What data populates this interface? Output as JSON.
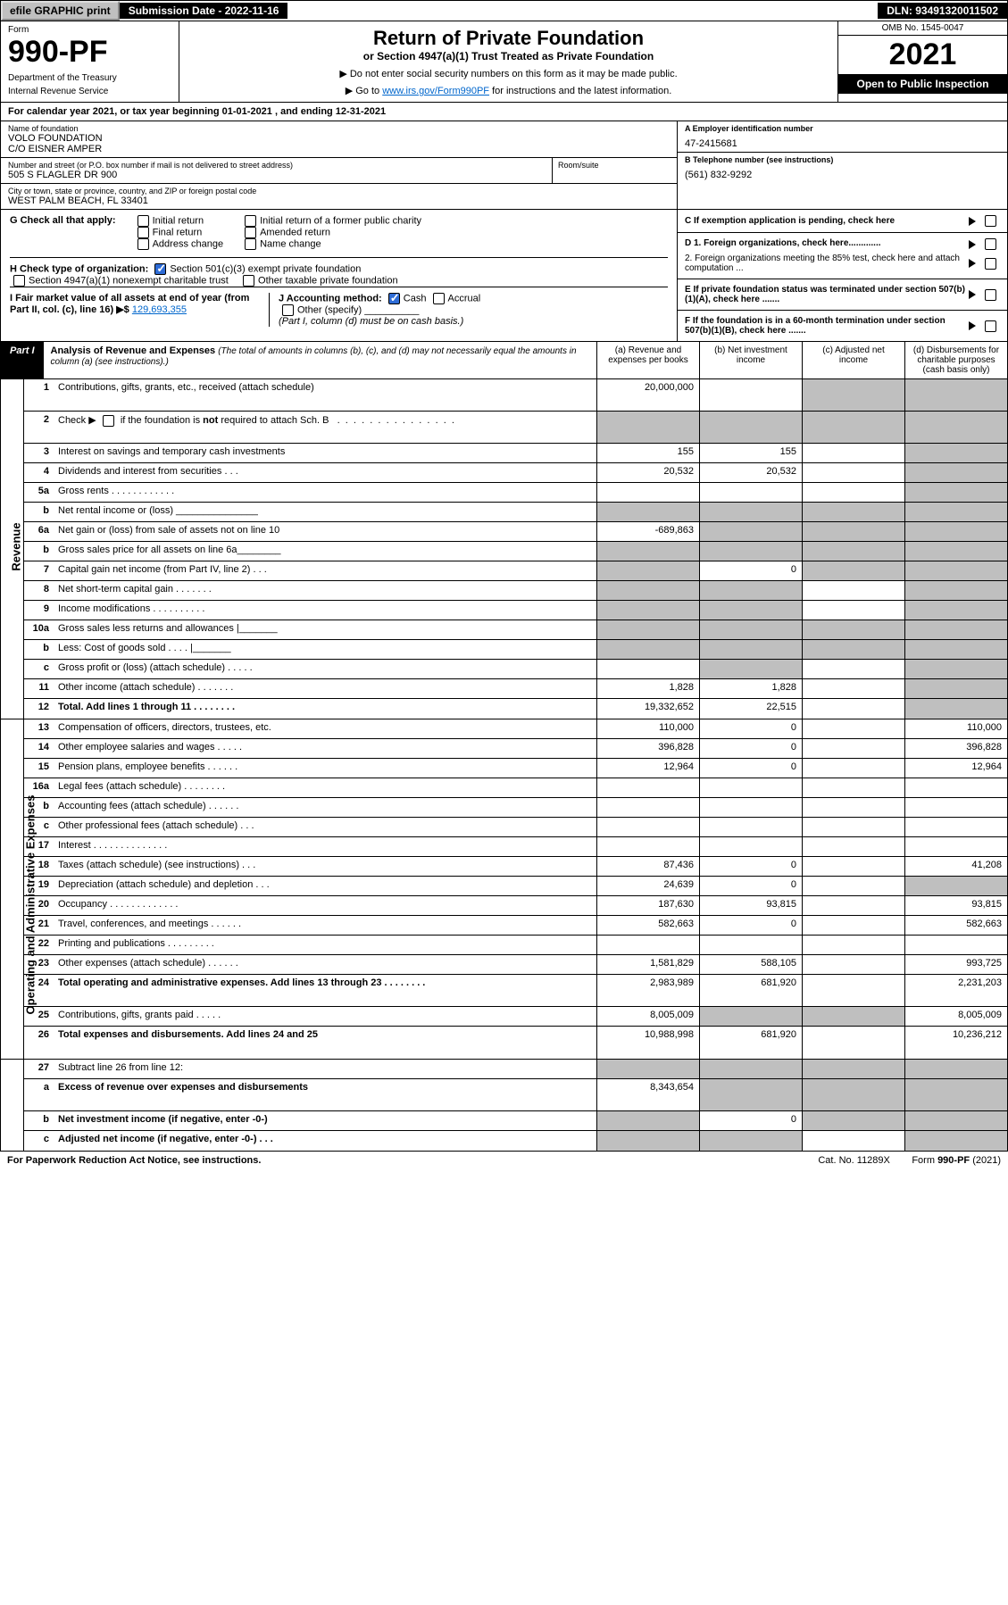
{
  "topbar": {
    "efile": "efile GRAPHIC print",
    "subdate": "Submission Date - 2022-11-16",
    "dln": "DLN: 93491320011502"
  },
  "header": {
    "form_label": "Form",
    "form_number": "990-PF",
    "dept": "Department of the Treasury",
    "irs": "Internal Revenue Service",
    "title": "Return of Private Foundation",
    "subtitle": "or Section 4947(a)(1) Trust Treated as Private Foundation",
    "note1": "▶ Do not enter social security numbers on this form as it may be made public.",
    "note2_pre": "▶ Go to ",
    "note2_link": "www.irs.gov/Form990PF",
    "note2_post": " for instructions and the latest information.",
    "omb": "OMB No. 1545-0047",
    "year": "2021",
    "open": "Open to Public Inspection"
  },
  "calyear": "For calendar year 2021, or tax year beginning 01-01-2021          , and ending 12-31-2021",
  "info": {
    "name_lbl": "Name of foundation",
    "name1": "VOLO FOUNDATION",
    "name2": "C/O EISNER AMPER",
    "addr_lbl": "Number and street (or P.O. box number if mail is not delivered to street address)",
    "addr": "505 S FLAGLER DR 900",
    "room_lbl": "Room/suite",
    "city_lbl": "City or town, state or province, country, and ZIP or foreign postal code",
    "city": "WEST PALM BEACH, FL  33401",
    "ein_lbl": "A Employer identification number",
    "ein": "47-2415681",
    "tel_lbl": "B Telephone number (see instructions)",
    "tel": "(561) 832-9292",
    "c_lbl": "C If exemption application is pending, check here",
    "d1": "D 1. Foreign organizations, check here.............",
    "d2": "2. Foreign organizations meeting the 85% test, check here and attach computation ...",
    "e_lbl": "E  If private foundation status was terminated under section 507(b)(1)(A), check here .......",
    "f_lbl": "F  If the foundation is in a 60-month termination under section 507(b)(1)(B), check here ......."
  },
  "g": {
    "label": "G Check all that apply:",
    "opts": [
      "Initial return",
      "Final return",
      "Address change",
      "Initial return of a former public charity",
      "Amended return",
      "Name change"
    ]
  },
  "h": {
    "label": "H Check type of organization:",
    "o1": "Section 501(c)(3) exempt private foundation",
    "o2": "Section 4947(a)(1) nonexempt charitable trust",
    "o3": "Other taxable private foundation"
  },
  "i": {
    "label": "I Fair market value of all assets at end of year (from Part II, col. (c), line 16) ▶$",
    "val": "129,693,355"
  },
  "j": {
    "label": "J Accounting method:",
    "cash": "Cash",
    "accrual": "Accrual",
    "other": "Other (specify)",
    "note": "(Part I, column (d) must be on cash basis.)"
  },
  "part1": {
    "tag": "Part I",
    "title": "Analysis of Revenue and Expenses",
    "note": " (The total of amounts in columns (b), (c), and (d) may not necessarily equal the amounts in column (a) (see instructions).)",
    "col_a": "(a)    Revenue and expenses per books",
    "col_b": "(b)    Net investment income",
    "col_c": "(c)   Adjusted net income",
    "col_d": "(d)   Disbursements for charitable purposes (cash basis only)"
  },
  "side": {
    "rev": "Revenue",
    "ope": "Operating and Administrative Expenses"
  },
  "rows": [
    {
      "n": "1",
      "d": "Contributions, gifts, grants, etc., received (attach schedule)",
      "a": "20,000,000",
      "b": "",
      "c": "g",
      "dd": "g",
      "tall": true
    },
    {
      "n": "2",
      "d": "Check ▶ ☐ if the foundation is not required to attach Sch. B     .   .   .   .   .   .   .   .   .   .   .   .   .   .   .",
      "a": "g",
      "b": "g",
      "c": "g",
      "dd": "g",
      "tall": true,
      "html": true
    },
    {
      "n": "3",
      "d": "Interest on savings and temporary cash investments",
      "a": "155",
      "b": "155",
      "c": "",
      "dd": "g"
    },
    {
      "n": "4",
      "d": "Dividends and interest from securities     .     .     .",
      "a": "20,532",
      "b": "20,532",
      "c": "",
      "dd": "g"
    },
    {
      "n": "5a",
      "d": "Gross rents      .    .    .    .    .    .    .    .    .    .    .    .",
      "a": "",
      "b": "",
      "c": "",
      "dd": "g"
    },
    {
      "n": "b",
      "d": "Net rental income or (loss)   _______________",
      "a": "g",
      "b": "g",
      "c": "g",
      "dd": "g"
    },
    {
      "n": "6a",
      "d": "Net gain or (loss) from sale of assets not on line 10",
      "a": "-689,863",
      "b": "g",
      "c": "g",
      "dd": "g"
    },
    {
      "n": "b",
      "d": "Gross sales price for all assets on line 6a________",
      "a": "g",
      "b": "g",
      "c": "g",
      "dd": "g"
    },
    {
      "n": "7",
      "d": "Capital gain net income (from Part IV, line 2)    .    .    .",
      "a": "g",
      "b": "0",
      "c": "g",
      "dd": "g"
    },
    {
      "n": "8",
      "d": "Net short-term capital gain   .    .    .    .    .    .    .",
      "a": "g",
      "b": "g",
      "c": "",
      "dd": "g"
    },
    {
      "n": "9",
      "d": "Income modifications  .   .   .   .   .   .   .   .   .   .",
      "a": "g",
      "b": "g",
      "c": "",
      "dd": "g"
    },
    {
      "n": "10a",
      "d": "Gross sales less returns and allowances   |_______",
      "a": "g",
      "b": "g",
      "c": "g",
      "dd": "g"
    },
    {
      "n": "b",
      "d": "Less: Cost of goods sold     .    .    .    .    |_______",
      "a": "g",
      "b": "g",
      "c": "g",
      "dd": "g"
    },
    {
      "n": "c",
      "d": "Gross profit or (loss) (attach schedule)     .    .    .    .    .",
      "a": "",
      "b": "g",
      "c": "",
      "dd": "g"
    },
    {
      "n": "11",
      "d": "Other income (attach schedule)    .    .    .    .    .    .    .",
      "a": "1,828",
      "b": "1,828",
      "c": "",
      "dd": "g"
    },
    {
      "n": "12",
      "d": "Total. Add lines 1 through 11   .    .    .    .    .    .    .    .",
      "a": "19,332,652",
      "b": "22,515",
      "c": "",
      "dd": "g",
      "bold": true
    }
  ],
  "rows2": [
    {
      "n": "13",
      "d": "Compensation of officers, directors, trustees, etc.",
      "a": "110,000",
      "b": "0",
      "c": "",
      "dd": "110,000"
    },
    {
      "n": "14",
      "d": "Other employee salaries and wages    .    .    .    .    .",
      "a": "396,828",
      "b": "0",
      "c": "",
      "dd": "396,828"
    },
    {
      "n": "15",
      "d": "Pension plans, employee benefits  .    .    .    .    .    .",
      "a": "12,964",
      "b": "0",
      "c": "",
      "dd": "12,964"
    },
    {
      "n": "16a",
      "d": "Legal fees (attach schedule)  .   .   .   .   .   .   .   .",
      "a": "",
      "b": "",
      "c": "",
      "dd": ""
    },
    {
      "n": "b",
      "d": "Accounting fees (attach schedule)  .   .   .   .   .   .",
      "a": "",
      "b": "",
      "c": "",
      "dd": ""
    },
    {
      "n": "c",
      "d": "Other professional fees (attach schedule)    .    .    .",
      "a": "",
      "b": "",
      "c": "",
      "dd": ""
    },
    {
      "n": "17",
      "d": "Interest  .   .   .   .   .   .   .   .   .   .   .   .   .   .",
      "a": "",
      "b": "",
      "c": "",
      "dd": ""
    },
    {
      "n": "18",
      "d": "Taxes (attach schedule) (see instructions)     .    .    .",
      "a": "87,436",
      "b": "0",
      "c": "",
      "dd": "41,208"
    },
    {
      "n": "19",
      "d": "Depreciation (attach schedule) and depletion    .    .    .",
      "a": "24,639",
      "b": "0",
      "c": "",
      "dd": "g"
    },
    {
      "n": "20",
      "d": "Occupancy  .   .   .   .   .   .   .   .   .   .   .   .   .",
      "a": "187,630",
      "b": "93,815",
      "c": "",
      "dd": "93,815"
    },
    {
      "n": "21",
      "d": "Travel, conferences, and meetings  .   .   .   .   .   .",
      "a": "582,663",
      "b": "0",
      "c": "",
      "dd": "582,663"
    },
    {
      "n": "22",
      "d": "Printing and publications  .   .   .   .   .   .   .   .   .",
      "a": "",
      "b": "",
      "c": "",
      "dd": ""
    },
    {
      "n": "23",
      "d": "Other expenses (attach schedule)  .   .   .   .   .   .",
      "a": "1,581,829",
      "b": "588,105",
      "c": "",
      "dd": "993,725"
    },
    {
      "n": "24",
      "d": "Total operating and administrative expenses. Add lines 13 through 23   .   .   .   .   .   .   .   .",
      "a": "2,983,989",
      "b": "681,920",
      "c": "",
      "dd": "2,231,203",
      "bold": true,
      "tall": true
    },
    {
      "n": "25",
      "d": "Contributions, gifts, grants paid     .    .    .    .    .",
      "a": "8,005,009",
      "b": "g",
      "c": "g",
      "dd": "8,005,009"
    },
    {
      "n": "26",
      "d": "Total expenses and disbursements. Add lines 24 and 25",
      "a": "10,988,998",
      "b": "681,920",
      "c": "",
      "dd": "10,236,212",
      "bold": true,
      "tall": true
    }
  ],
  "rows3": [
    {
      "n": "27",
      "d": "Subtract line 26 from line 12:",
      "a": "g",
      "b": "g",
      "c": "g",
      "dd": "g"
    },
    {
      "n": "a",
      "d": "Excess of revenue over expenses and disbursements",
      "a": "8,343,654",
      "b": "g",
      "c": "g",
      "dd": "g",
      "bold": true,
      "tall": true
    },
    {
      "n": "b",
      "d": "Net investment income (if negative, enter -0-)",
      "a": "g",
      "b": "0",
      "c": "g",
      "dd": "g",
      "bold": true
    },
    {
      "n": "c",
      "d": "Adjusted net income (if negative, enter -0-)    .    .    .",
      "a": "g",
      "b": "g",
      "c": "",
      "dd": "g",
      "bold": true
    }
  ],
  "footer": {
    "left": "For Paperwork Reduction Act Notice, see instructions.",
    "mid": "Cat. No. 11289X",
    "right": "Form 990-PF (2021)"
  }
}
